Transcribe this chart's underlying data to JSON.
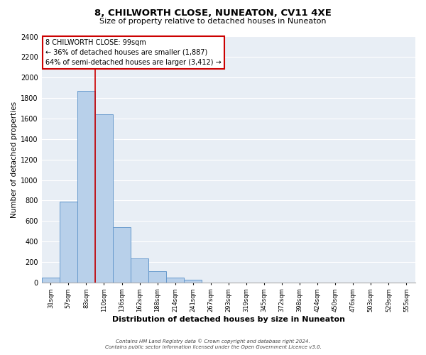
{
  "title": "8, CHILWORTH CLOSE, NUNEATON, CV11 4XE",
  "subtitle": "Size of property relative to detached houses in Nuneaton",
  "bar_values": [
    50,
    790,
    1870,
    1640,
    540,
    235,
    110,
    50,
    30,
    0,
    0,
    0,
    0,
    0,
    0,
    0,
    0,
    0,
    0,
    0,
    0
  ],
  "bin_labels": [
    "31sqm",
    "57sqm",
    "83sqm",
    "110sqm",
    "136sqm",
    "162sqm",
    "188sqm",
    "214sqm",
    "241sqm",
    "267sqm",
    "293sqm",
    "319sqm",
    "345sqm",
    "372sqm",
    "398sqm",
    "424sqm",
    "450sqm",
    "476sqm",
    "503sqm",
    "529sqm",
    "555sqm"
  ],
  "bar_color": "#b8d0ea",
  "bar_edge_color": "#6699cc",
  "ylabel": "Number of detached properties",
  "xlabel": "Distribution of detached houses by size in Nuneaton",
  "ylim": [
    0,
    2400
  ],
  "yticks": [
    0,
    200,
    400,
    600,
    800,
    1000,
    1200,
    1400,
    1600,
    1800,
    2000,
    2200,
    2400
  ],
  "vline_color": "#cc0000",
  "annotation_title": "8 CHILWORTH CLOSE: 99sqm",
  "annotation_line1": "← 36% of detached houses are smaller (1,887)",
  "annotation_line2": "64% of semi-detached houses are larger (3,412) →",
  "annotation_box_color": "#ffffff",
  "annotation_box_edge": "#cc0000",
  "background_color": "#e8eef5",
  "grid_color": "#ffffff",
  "footer_line1": "Contains HM Land Registry data © Crown copyright and database right 2024.",
  "footer_line2": "Contains public sector information licensed under the Open Government Licence v3.0."
}
